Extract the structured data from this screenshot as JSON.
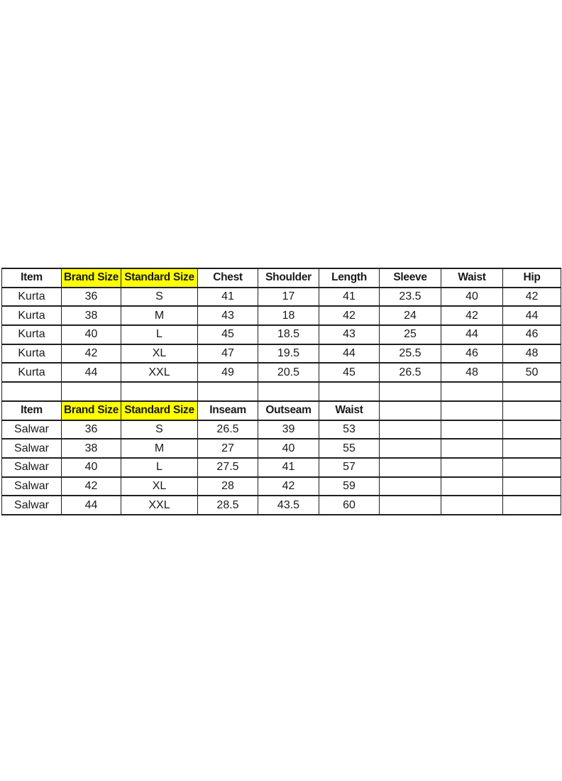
{
  "page": {
    "background": "#ffffff"
  },
  "colors": {
    "header_highlight": "#ffff00",
    "grid_line": "#1f1f1f",
    "text": "#1a1a1a"
  },
  "highlight_columns": [
    1,
    2
  ],
  "tables": [
    {
      "name": "kurta-size-table",
      "headers": [
        "Item",
        "Brand Size",
        "Standard Size",
        "Chest",
        "Shoulder",
        "Length",
        "Sleeve",
        "Waist",
        "Hip"
      ],
      "rows": [
        [
          "Kurta",
          "36",
          "S",
          "41",
          "17",
          "41",
          "23.5",
          "40",
          "42"
        ],
        [
          "Kurta",
          "38",
          "M",
          "43",
          "18",
          "42",
          "24",
          "42",
          "44"
        ],
        [
          "Kurta",
          "40",
          "L",
          "45",
          "18.5",
          "43",
          "25",
          "44",
          "46"
        ],
        [
          "Kurta",
          "42",
          "XL",
          "47",
          "19.5",
          "44",
          "25.5",
          "46",
          "48"
        ],
        [
          "Kurta",
          "44",
          "XXL",
          "49",
          "20.5",
          "45",
          "26.5",
          "48",
          "50"
        ]
      ]
    },
    {
      "name": "salwar-size-table",
      "headers": [
        "Item",
        "Brand Size",
        "Standard Size",
        "Inseam",
        "Outseam",
        "Waist",
        "",
        "",
        ""
      ],
      "rows": [
        [
          "Salwar",
          "36",
          "S",
          "26.5",
          "39",
          "53",
          "",
          "",
          ""
        ],
        [
          "Salwar",
          "38",
          "M",
          "27",
          "40",
          "55",
          "",
          "",
          ""
        ],
        [
          "Salwar",
          "40",
          "L",
          "27.5",
          "41",
          "57",
          "",
          "",
          ""
        ],
        [
          "Salwar",
          "42",
          "XL",
          "28",
          "42",
          "59",
          "",
          "",
          ""
        ],
        [
          "Salwar",
          "44",
          "XXL",
          "28.5",
          "43.5",
          "60",
          "",
          "",
          ""
        ]
      ]
    }
  ],
  "spacer_row": [
    "",
    "",
    "",
    "",
    "",
    "",
    "",
    "",
    ""
  ]
}
